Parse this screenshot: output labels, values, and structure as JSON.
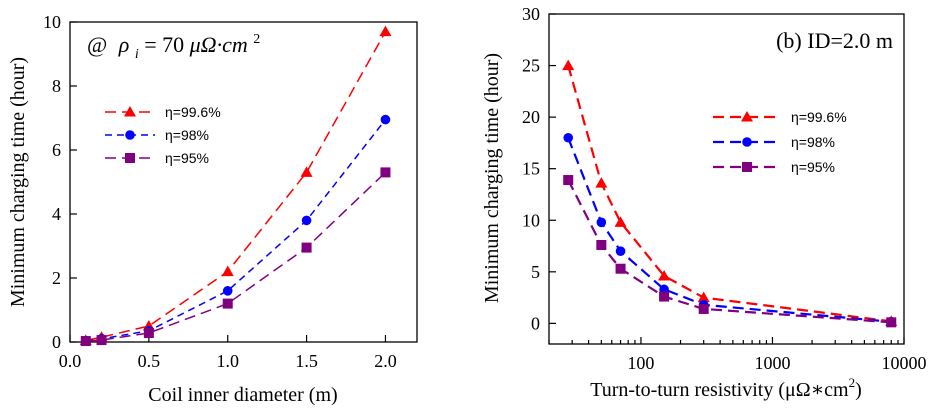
{
  "chart_data": [
    {
      "type": "line",
      "annotation": "@ ρi = 70 μΩ·cm²",
      "annotation_parts": {
        "at": "@",
        "rho": "ρ",
        "sub": "i",
        "eq": " = 70 ",
        "unit": "μΩ·cm",
        "sup": "2"
      },
      "xlabel": "Coil inner diameter (m)",
      "ylabel": "Minimum charging time (hour)",
      "xlim": [
        0,
        2.2
      ],
      "ylim": [
        0,
        10
      ],
      "xticks": [
        0.0,
        0.5,
        1.0,
        1.5,
        2.0
      ],
      "xtick_labels": [
        "0.0",
        "0.5",
        "1.0",
        "1.5",
        "2.0"
      ],
      "yticks": [
        0,
        2,
        4,
        6,
        8,
        10
      ],
      "ytick_labels": [
        "0",
        "2",
        "4",
        "6",
        "8",
        "10"
      ],
      "legend_position": "upper-left",
      "series": [
        {
          "name": "η=99.6%",
          "color": "#ff0000",
          "marker": "triangle",
          "dash": "long-dash",
          "x": [
            0.1,
            0.2,
            0.5,
            1.0,
            1.5,
            2.0
          ],
          "y": [
            0.05,
            0.15,
            0.5,
            2.2,
            5.3,
            9.7
          ]
        },
        {
          "name": "η=98%",
          "color": "#0000ff",
          "marker": "circle",
          "dash": "dash",
          "x": [
            0.1,
            0.2,
            0.5,
            1.0,
            1.5,
            2.0
          ],
          "y": [
            0.04,
            0.1,
            0.35,
            1.6,
            3.8,
            6.95
          ]
        },
        {
          "name": "η=95%",
          "color": "#800080",
          "marker": "square",
          "dash": "long-dash",
          "x": [
            0.1,
            0.2,
            0.5,
            1.0,
            1.5,
            2.0
          ],
          "y": [
            0.03,
            0.06,
            0.28,
            1.2,
            2.95,
            5.3
          ]
        }
      ]
    },
    {
      "type": "line",
      "annotation": "(b) ID=2.0 m",
      "xlabel": "Turn-to-turn resistivity (μΩ∗cm²)",
      "xlabel_parts": {
        "main": "Turn-to-turn resistivity (μΩ∗cm",
        "sup": "2",
        "close": ")"
      },
      "ylabel": "Minimum charging time (hour)",
      "xscale": "log",
      "xlim": [
        20,
        10000
      ],
      "ylim": [
        -2,
        30
      ],
      "xticks": [
        100,
        1000,
        10000
      ],
      "xtick_labels": [
        "100",
        "1000",
        "10000"
      ],
      "yticks": [
        0,
        5,
        10,
        15,
        20,
        25,
        30
      ],
      "ytick_labels": [
        "0",
        "5",
        "10",
        "15",
        "20",
        "25",
        "30"
      ],
      "legend_position": "upper-right",
      "series": [
        {
          "name": "η=99.6%",
          "color": "#ff0000",
          "marker": "triangle",
          "dash": "long-dash",
          "x": [
            28,
            50,
            70,
            150,
            300,
            8000
          ],
          "y": [
            25,
            13.6,
            9.8,
            4.6,
            2.5,
            0.2
          ]
        },
        {
          "name": "η=98%",
          "color": "#0000ff",
          "marker": "circle",
          "dash": "long-dash",
          "x": [
            28,
            50,
            70,
            150,
            300,
            8000
          ],
          "y": [
            18,
            9.8,
            7,
            3.3,
            1.8,
            0.15
          ]
        },
        {
          "name": "η=95%",
          "color": "#800080",
          "marker": "square",
          "dash": "long-dash",
          "x": [
            28,
            50,
            70,
            150,
            300,
            8000
          ],
          "y": [
            13.9,
            7.6,
            5.3,
            2.6,
            1.4,
            0.1
          ]
        }
      ]
    }
  ]
}
